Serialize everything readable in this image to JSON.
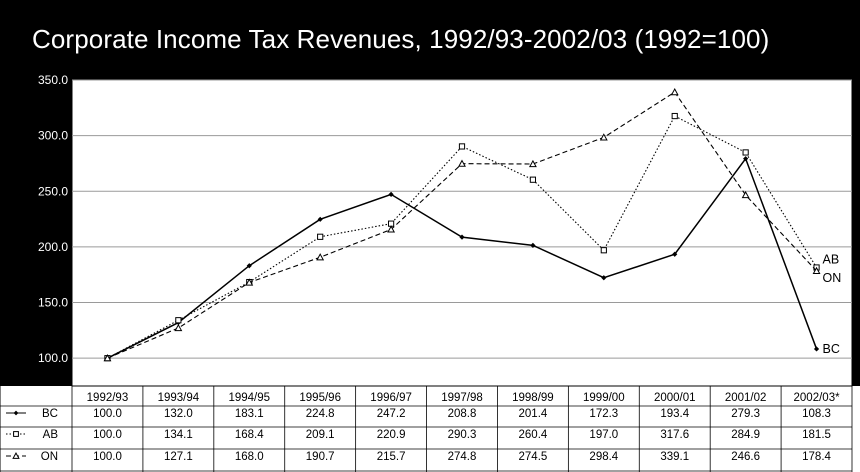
{
  "chart_data": {
    "type": "line",
    "title": "Corporate Income Tax Revenues, 1992/93-2002/03 (1992=100)",
    "categories": [
      "1992/93",
      "1993/94",
      "1994/95",
      "1995/96",
      "1996/97",
      "1997/98",
      "1998/99",
      "1999/00",
      "2000/01",
      "2001/02",
      "2002/03*"
    ],
    "ylim": [
      75,
      350
    ],
    "yticks": [
      "350.0",
      "300.0",
      "250.0",
      "200.0",
      "150.0",
      "100.0"
    ],
    "grid": true,
    "series": [
      {
        "name": "BC",
        "marker": "diamond",
        "dash": "solid",
        "labels": [
          "100.0",
          "132.0",
          "183.1",
          "224.8",
          "247.2",
          "208.8",
          "201.4",
          "172.3",
          "193.4",
          "279.3",
          "108.3"
        ]
      },
      {
        "name": "AB",
        "marker": "square",
        "dash": "dotted",
        "labels": [
          "100.0",
          "134.1",
          "168.4",
          "209.1",
          "220.9",
          "290.3",
          "260.4",
          "197.0",
          "317.6",
          "284.9",
          "181.5"
        ]
      },
      {
        "name": "ON",
        "marker": "triangle",
        "dash": "dashed",
        "labels": [
          "100.0",
          "127.1",
          "168.0",
          "190.7",
          "215.7",
          "274.8",
          "274.5",
          "298.4",
          "339.1",
          "246.6",
          "178.4"
        ]
      }
    ]
  }
}
